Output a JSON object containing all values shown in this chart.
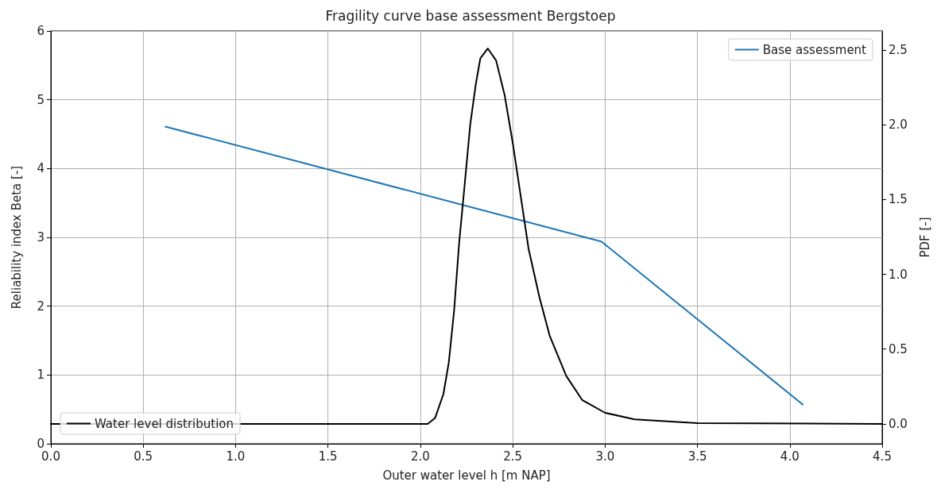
{
  "chart_data": {
    "type": "line",
    "title": "Fragility curve base assessment Bergstoep",
    "xlabel": "Outer water level h [m NAP]",
    "ylabel": "Reliability index Beta [-]",
    "y2label": "PDF [-]",
    "xlim": [
      0,
      4.5
    ],
    "xticks": [
      {
        "value": 0,
        "label": "0.0"
      },
      {
        "value": 0.5,
        "label": "0.5"
      },
      {
        "value": 1,
        "label": "1.0"
      },
      {
        "value": 1.5,
        "label": "1.5"
      },
      {
        "value": 2,
        "label": "2.0"
      },
      {
        "value": 2.5,
        "label": "2.5"
      },
      {
        "value": 3,
        "label": "3.0"
      },
      {
        "value": 3.5,
        "label": "3.5"
      },
      {
        "value": 4,
        "label": "4.0"
      },
      {
        "value": 4.5,
        "label": "4.5"
      }
    ],
    "ylim": [
      0,
      6
    ],
    "yticks": [
      0,
      1,
      2,
      3,
      4,
      5,
      6
    ],
    "y2lim": [
      -0.133,
      2.627
    ],
    "y2ticks": [
      {
        "value": 0,
        "label": "0.0"
      },
      {
        "value": 0.5,
        "label": "0.5"
      },
      {
        "value": 1,
        "label": "1.0"
      },
      {
        "value": 1.5,
        "label": "1.5"
      },
      {
        "value": 2,
        "label": "2.0"
      },
      {
        "value": 2.5,
        "label": "2.5"
      }
    ],
    "grid": true,
    "marker": "none",
    "line_style": "solid",
    "legend": [
      "top right",
      "bottom left"
    ],
    "series": [
      {
        "name": "Base assessment",
        "color": "#1f77b4",
        "x": [
          0.62,
          2.98,
          4.07
        ],
        "values": [
          4.61,
          2.94,
          0.57
        ]
      },
      {
        "name": "Water level distribution",
        "color": "#000000",
        "axis": "y2",
        "x": [
          0,
          2.04,
          2.08,
          2.125,
          2.154,
          2.183,
          2.21,
          2.24,
          2.27,
          2.3,
          2.325,
          2.365,
          2.41,
          2.456,
          2.5,
          2.543,
          2.586,
          2.644,
          2.7,
          2.79,
          2.876,
          3.0,
          3.16,
          3.5,
          4.5
        ],
        "values": [
          0,
          0,
          0.04,
          0.2,
          0.41,
          0.76,
          1.21,
          1.6,
          2.0,
          2.27,
          2.445,
          2.51,
          2.43,
          2.2,
          1.88,
          1.525,
          1.17,
          0.85,
          0.59,
          0.32,
          0.16,
          0.074,
          0.03,
          0.005,
          0
        ]
      }
    ]
  }
}
